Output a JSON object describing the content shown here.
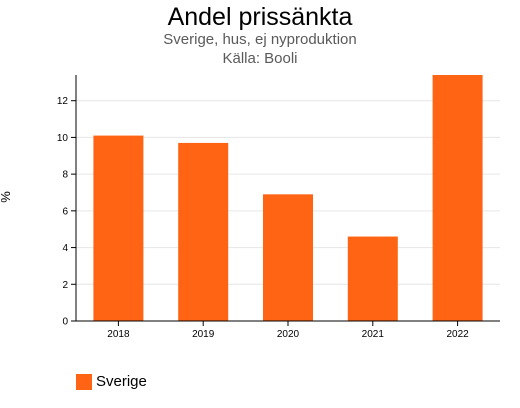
{
  "chart_data": {
    "type": "bar",
    "title": "Andel prissänkta",
    "subtitle": "Sverige, hus, ej nyproduktion",
    "source": "Källa: Booli",
    "ylabel": "%",
    "xlabel": "",
    "categories": [
      "2018",
      "2019",
      "2020",
      "2021",
      "2022"
    ],
    "series": [
      {
        "name": "Sverige",
        "values": [
          10.1,
          9.7,
          6.9,
          4.6,
          13.4
        ],
        "color": "#ff6414"
      }
    ],
    "ylim": [
      0,
      13.4
    ],
    "yticks": [
      0,
      2,
      4,
      6,
      8,
      10,
      12
    ],
    "grid": true,
    "legend_position": "bottom-left"
  }
}
